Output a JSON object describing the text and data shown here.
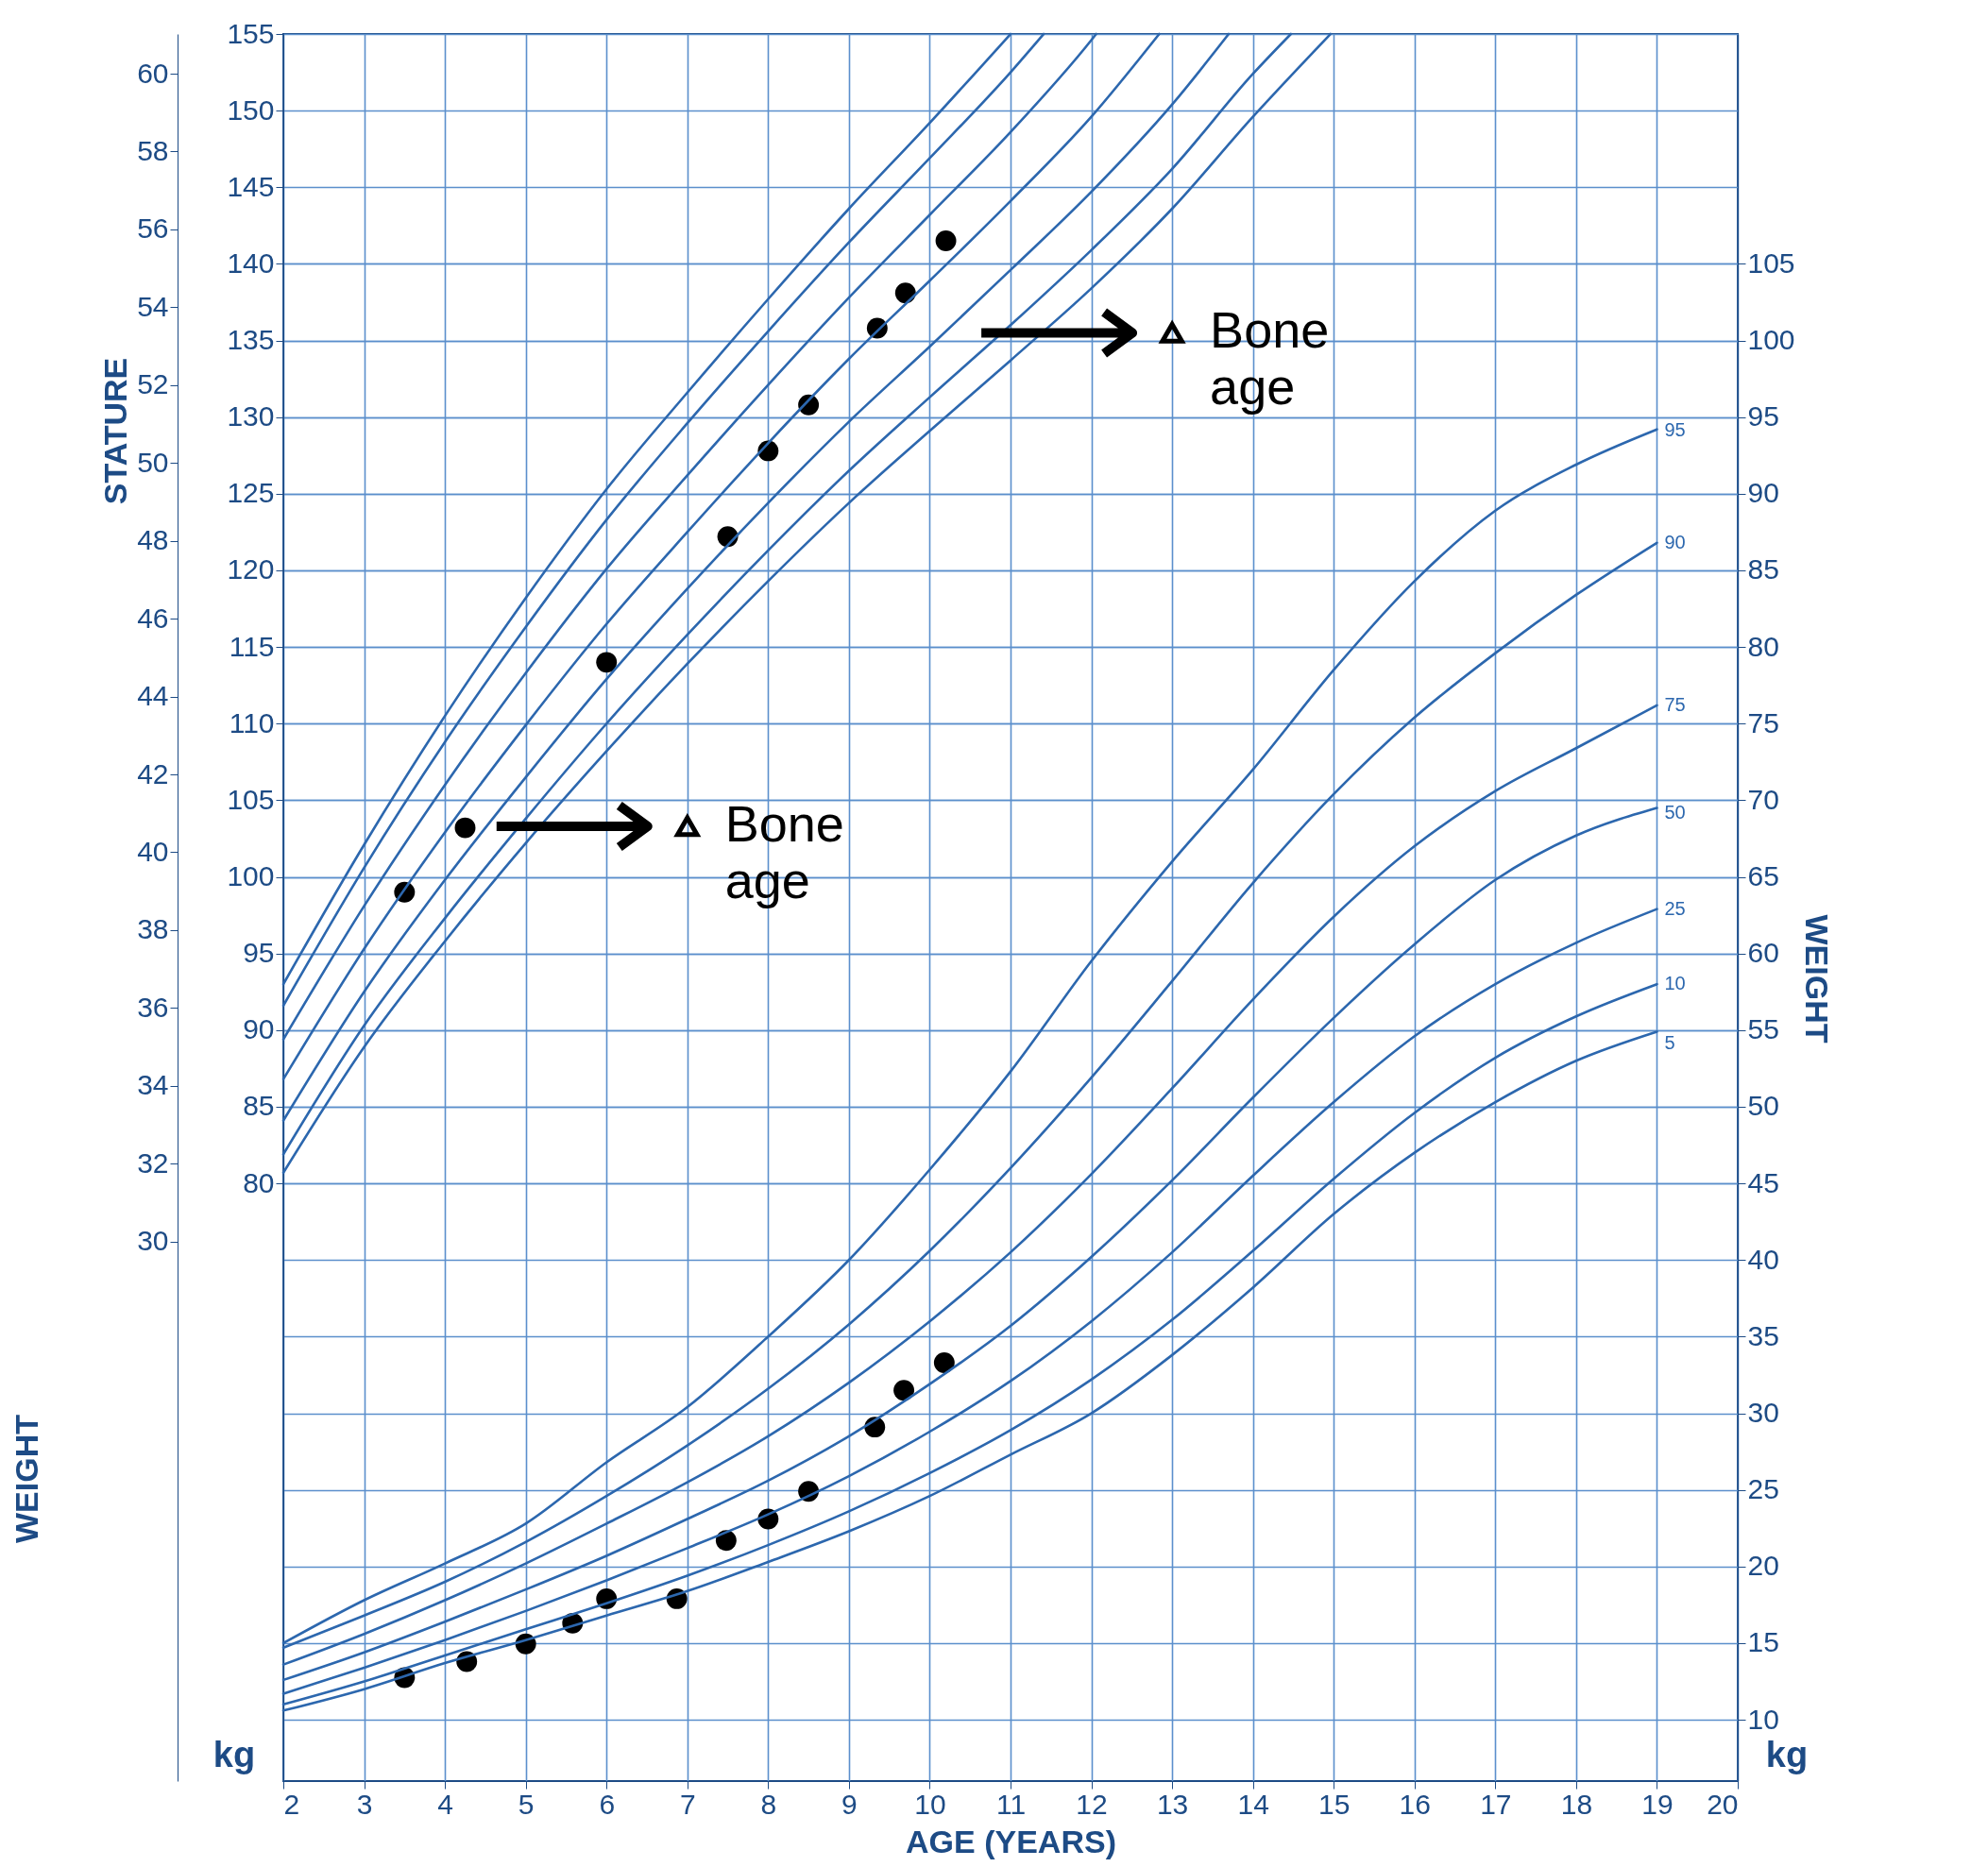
{
  "chart_data": {
    "type": "line",
    "xlabel": "AGE (YEARS)",
    "ylabel": "STATURE",
    "y2label": "WEIGHT",
    "xlim": [
      2,
      20
    ],
    "xticks": [
      2,
      3,
      4,
      5,
      6,
      7,
      8,
      9,
      10,
      11,
      12,
      13,
      14,
      15,
      16,
      17,
      18,
      19,
      20
    ],
    "ylim": [
      41,
      155
    ],
    "yticks": [
      80,
      85,
      90,
      95,
      100,
      105,
      110,
      115,
      120,
      125,
      130,
      135,
      140,
      145,
      150,
      155
    ],
    "y3lim": [
      16.14,
      61.02
    ],
    "y3ticks": [
      30,
      32,
      34,
      36,
      38,
      40,
      42,
      44,
      46,
      48,
      50,
      52,
      54,
      56,
      58,
      60
    ],
    "y2lim": [
      6,
      120
    ],
    "y2ticks": [
      10,
      15,
      20,
      25,
      30,
      35,
      40,
      45,
      50,
      55,
      60,
      65,
      70,
      75,
      80,
      85,
      90,
      95,
      100,
      105
    ],
    "grid": true,
    "series": [
      {
        "color": "#2c67ae",
        "x": [
          2,
          3,
          4,
          5,
          6,
          7,
          8,
          9,
          10,
          11,
          12,
          13,
          14,
          14.96
        ],
        "values": [
          80.7,
          88.9,
          95.8,
          102.2,
          108.2,
          113.9,
          119.3,
          124.4,
          129.1,
          133.7,
          138.4,
          143.6,
          149.6,
          155
        ]
      },
      {
        "color": "#2c67ae",
        "x": [
          2,
          3,
          4,
          5,
          6,
          7,
          8,
          9,
          10,
          11,
          12,
          13,
          14,
          14.47
        ],
        "values": [
          81.9,
          90.3,
          97.3,
          103.8,
          110.0,
          115.8,
          121.3,
          126.5,
          131.3,
          136.0,
          140.9,
          146.2,
          152.4,
          155
        ]
      },
      {
        "color": "#2c67ae",
        "x": [
          2,
          3,
          4,
          5,
          6,
          7,
          8,
          9,
          10,
          11,
          12,
          13,
          13.7
        ],
        "values": [
          84.1,
          92.5,
          99.8,
          106.5,
          112.9,
          118.8,
          124.4,
          129.7,
          134.6,
          139.6,
          144.7,
          150.4,
          155
        ]
      },
      {
        "color": "#2c67ae",
        "x": [
          2,
          3,
          4,
          5,
          6,
          7,
          8,
          9,
          10,
          11,
          12,
          12.84
        ],
        "values": [
          86.8,
          95.3,
          102.9,
          109.9,
          116.5,
          122.5,
          128.3,
          133.8,
          138.9,
          144.1,
          149.6,
          155
        ]
      },
      {
        "color": "#2c67ae",
        "x": [
          2,
          3,
          4,
          5,
          6,
          7,
          8,
          9,
          10,
          11,
          12,
          12.06
        ],
        "values": [
          89.4,
          98.1,
          106.0,
          113.3,
          120.1,
          126.2,
          132.1,
          137.8,
          143.2,
          148.6,
          154.6,
          155
        ]
      },
      {
        "color": "#2c67ae",
        "x": [
          2,
          3,
          4,
          5,
          6,
          7,
          8,
          9,
          10,
          11,
          11.41
        ],
        "values": [
          91.6,
          100.6,
          108.8,
          116.3,
          123.3,
          129.6,
          135.6,
          141.4,
          146.9,
          152.5,
          155
        ]
      },
      {
        "color": "#2c67ae",
        "x": [
          2,
          3,
          4,
          5,
          6,
          7,
          8,
          9,
          10,
          11
        ],
        "values": [
          93.0,
          102.1,
          110.5,
          118.2,
          125.3,
          131.6,
          137.7,
          143.6,
          149.2,
          155
        ]
      },
      {
        "name": "95",
        "axis": "y2",
        "color": "#2c67ae",
        "x": [
          2,
          3,
          4,
          5,
          6,
          7,
          8,
          9,
          10,
          11,
          12,
          13,
          14,
          15,
          16,
          17,
          18,
          19
        ],
        "values": [
          15.0,
          17.8,
          20.2,
          22.8,
          26.8,
          30.4,
          35.0,
          40.0,
          45.9,
          52.3,
          59.5,
          66.0,
          72.0,
          78.5,
          84.3,
          88.9,
          91.9,
          94.2
        ]
      },
      {
        "name": "90",
        "axis": "y2",
        "color": "#2c67ae",
        "x": [
          2,
          3,
          4,
          5,
          6,
          7,
          8,
          9,
          10,
          11,
          12,
          13,
          14,
          15,
          16,
          17,
          18,
          19
        ],
        "values": [
          14.7,
          16.8,
          19.0,
          21.6,
          24.6,
          27.9,
          31.6,
          35.8,
          40.6,
          46.0,
          51.9,
          58.2,
          64.6,
          70.4,
          75.4,
          79.6,
          83.4,
          86.8
        ]
      },
      {
        "name": "75",
        "axis": "y2",
        "color": "#2c67ae",
        "x": [
          2,
          3,
          4,
          5,
          6,
          7,
          8,
          9,
          10,
          11,
          12,
          13,
          14,
          15,
          16,
          17,
          18,
          19
        ],
        "values": [
          13.6,
          15.6,
          17.8,
          20.2,
          22.8,
          25.5,
          28.5,
          32.0,
          36.0,
          40.5,
          45.6,
          51.2,
          57.0,
          62.4,
          67.0,
          70.6,
          73.4,
          76.2
        ]
      },
      {
        "name": "50",
        "axis": "y2",
        "color": "#2c67ae",
        "x": [
          2,
          3,
          4,
          5,
          6,
          7,
          8,
          9,
          10,
          11,
          12,
          13,
          14,
          15,
          16,
          17,
          18,
          19
        ],
        "values": [
          12.6,
          14.4,
          16.4,
          18.5,
          20.7,
          23.1,
          25.6,
          28.5,
          31.9,
          35.7,
          40.2,
          45.2,
          50.6,
          55.8,
          60.6,
          64.8,
          67.7,
          69.5
        ]
      },
      {
        "name": "25",
        "axis": "y2",
        "color": "#2c67ae",
        "x": [
          2,
          3,
          4,
          5,
          6,
          7,
          8,
          9,
          10,
          11,
          12,
          13,
          14,
          15,
          16,
          17,
          18,
          19
        ],
        "values": [
          11.7,
          13.4,
          15.2,
          17.1,
          19.1,
          21.2,
          23.4,
          25.9,
          28.8,
          32.1,
          36.0,
          40.5,
          45.5,
          50.3,
          54.6,
          58.0,
          60.7,
          62.9
        ]
      },
      {
        "name": "10",
        "axis": "y2",
        "color": "#2c67ae",
        "x": [
          2,
          3,
          4,
          5,
          6,
          7,
          8,
          9,
          10,
          11,
          12,
          13,
          14,
          15,
          16,
          17,
          18,
          19
        ],
        "values": [
          11.0,
          12.5,
          14.2,
          15.9,
          17.6,
          19.4,
          21.4,
          23.6,
          26.1,
          28.9,
          32.2,
          36.1,
          40.6,
          45.3,
          49.6,
          53.2,
          55.9,
          58.0
        ]
      },
      {
        "name": "5",
        "axis": "y2",
        "color": "#2c67ae",
        "x": [
          2,
          3,
          4,
          5,
          6,
          7,
          8,
          9,
          10,
          11,
          12,
          13,
          14,
          15,
          16,
          17,
          18,
          19
        ],
        "values": [
          10.6,
          12.0,
          13.7,
          15.2,
          16.8,
          18.4,
          20.3,
          22.3,
          24.6,
          27.3,
          30.0,
          33.8,
          38.2,
          43.0,
          47.0,
          50.3,
          53.0,
          54.9
        ]
      },
      {
        "type": "scatter",
        "marker": "circle",
        "color": "#000000",
        "x": [
          3.5,
          4.25,
          6.0,
          7.5,
          8.0,
          8.5,
          9.35,
          9.7,
          10.2
        ],
        "values": [
          99.0,
          103.2,
          114.0,
          122.2,
          127.8,
          130.8,
          135.8,
          138.1,
          141.5
        ]
      },
      {
        "type": "scatter",
        "marker": "triangle",
        "color": "#000000",
        "x": [
          7.0,
          13.0
        ],
        "values": [
          103.3,
          135.5
        ]
      },
      {
        "type": "scatter",
        "marker": "circle",
        "axis": "y2",
        "color": "#000000",
        "x": [
          3.5,
          4.27,
          5.0,
          5.58,
          6.0,
          6.87,
          7.48,
          8.0,
          8.5,
          9.32,
          9.68,
          10.18
        ],
        "values": [
          12.75,
          13.8,
          14.95,
          16.3,
          17.9,
          17.9,
          21.7,
          23.1,
          24.9,
          29.1,
          31.5,
          33.3
        ]
      }
    ],
    "annotations": [
      {
        "text": "Bone age",
        "x": 7.0,
        "y": 103.3
      },
      {
        "text": "Bone age",
        "x": 13.0,
        "y": 135.5
      },
      "WEIGHT",
      "kg",
      "kg"
    ]
  }
}
